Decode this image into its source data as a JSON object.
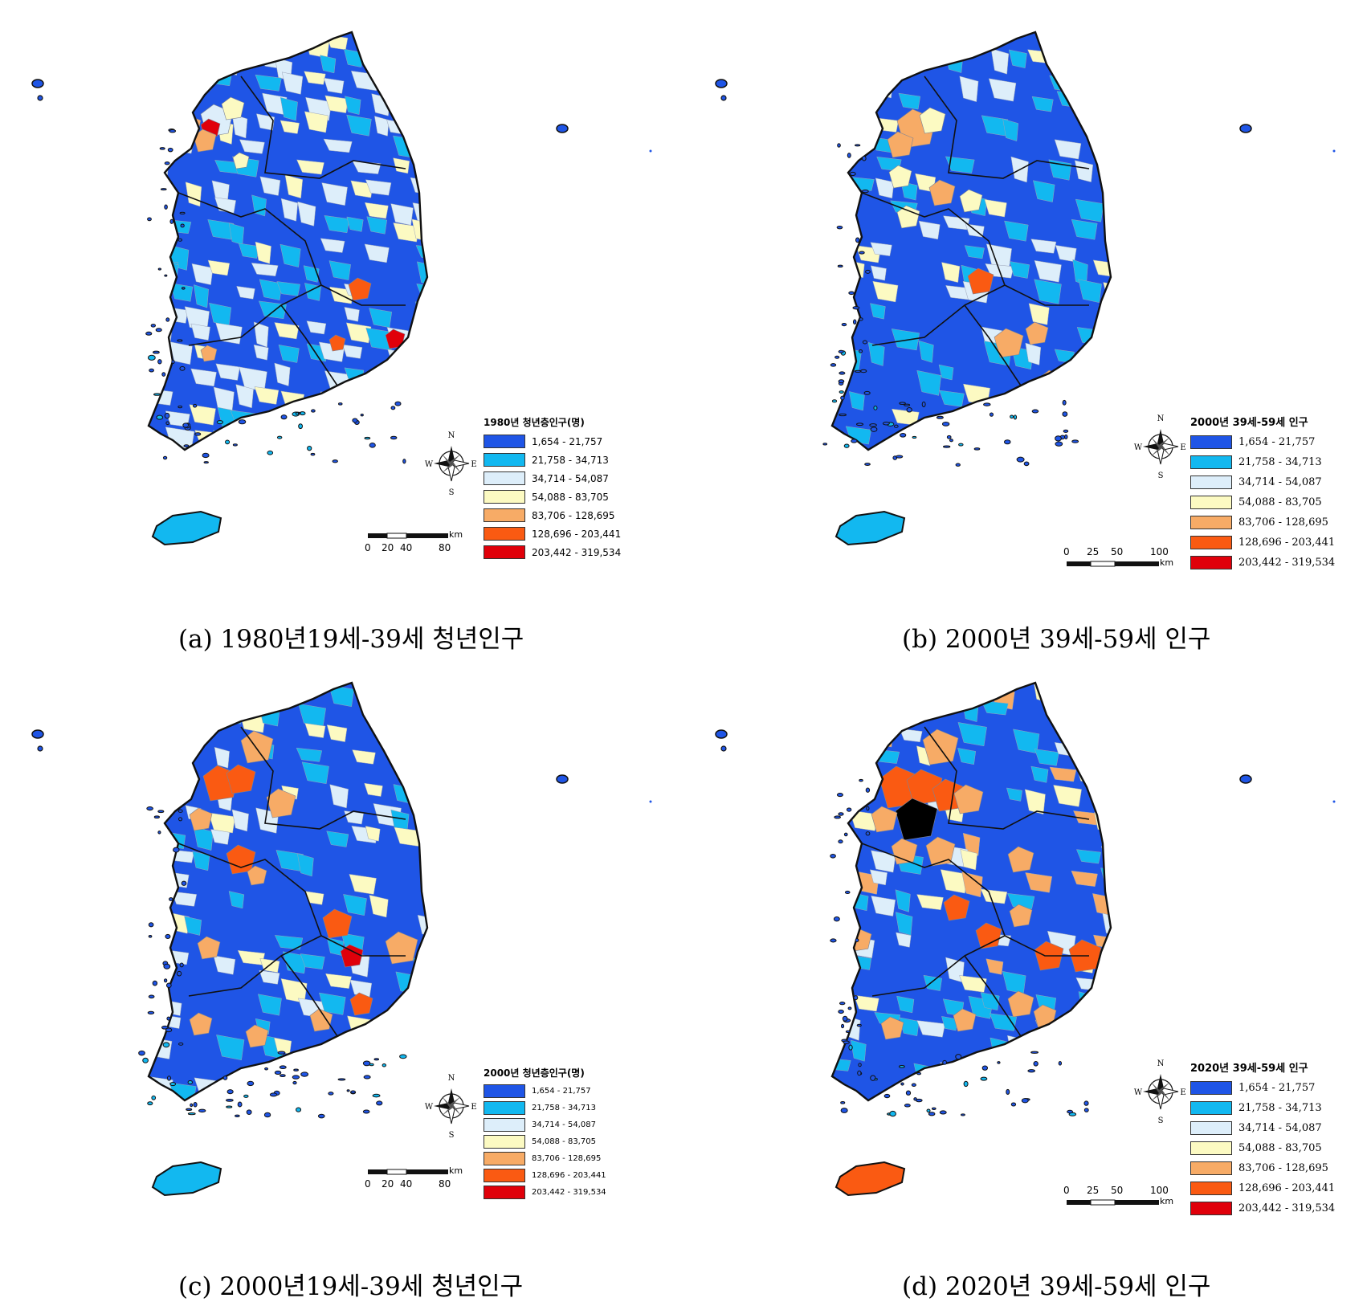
{
  "colors": {
    "c1": "#1f55e6",
    "c2": "#12b8f0",
    "c3": "#ddeefa",
    "c4": "#fcfac2",
    "c5": "#f7ab66",
    "c6": "#fa5a12",
    "c7": "#e0000a",
    "outline": "#111111"
  },
  "legend_ranges": [
    "1,654 - 21,757",
    "21,758 - 34,713",
    "34,714 - 54,087",
    "54,088 - 83,705",
    "83,706 - 128,695",
    "128,696 - 203,441",
    "203,442 - 319,534"
  ],
  "compass_labels": {
    "n": "N",
    "s": "S",
    "e": "E",
    "w": "W"
  },
  "panels": [
    {
      "id": "a",
      "caption": "(a) 1980년19세-39세 청년인구",
      "legend_title": "1980년 청년층인구(명)",
      "scale_ticks": [
        "0",
        "20",
        "40",
        "80"
      ],
      "scale_unit": "km"
    },
    {
      "id": "b",
      "caption": "(b) 2000년 39세-59세 인구",
      "legend_title": "2000년 39세-59세 인구",
      "scale_ticks": [
        "0",
        "25",
        "50",
        "100"
      ],
      "scale_unit": "km"
    },
    {
      "id": "c",
      "caption": "(c) 2000년19세-39세 청년인구",
      "legend_title": "2000년 청년층인구(명)",
      "scale_ticks": [
        "0",
        "20",
        "40",
        "80"
      ],
      "scale_unit": "km"
    },
    {
      "id": "d",
      "caption": "(d) 2020년 39세-59세 인구",
      "legend_title": "2020년 39세-59세 인구",
      "scale_ticks": [
        "0",
        "25",
        "50",
        "100"
      ],
      "scale_unit": "km"
    }
  ]
}
